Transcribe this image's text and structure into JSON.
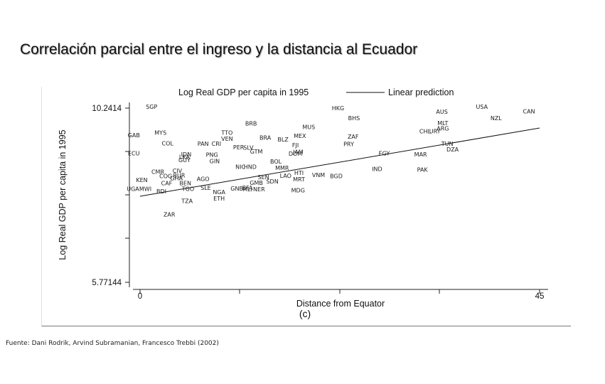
{
  "slide": {
    "title": "Correlación parcial entre el ingreso y la distancia al Ecuador",
    "source": "Fuente: Dani Rodrik, Arvind Subramanian, Francesco Trebbi (2002)"
  },
  "chart_data": {
    "type": "scatter",
    "title": "Log Real GDP per capita in 1995",
    "legend": "Linear prediction",
    "legend_position": "top",
    "xlabel": "Distance from Equator",
    "ylabel": "Log Real GDP per capita in 1995",
    "panel_label": "(c)",
    "xlim": [
      0,
      45
    ],
    "ylim": [
      5.77144,
      10.2414
    ],
    "x_ticks": [
      {
        "value": 0,
        "label": "0"
      },
      {
        "value": 45,
        "label": "45"
      }
    ],
    "y_ticks": [
      {
        "value": 10.2414,
        "label": "10.2414"
      },
      {
        "value": 5.77144,
        "label": "5.77144"
      }
    ],
    "grid": false,
    "fit_line": {
      "x": [
        0,
        45
      ],
      "y": [
        7.98,
        9.73
      ]
    },
    "points": [
      {
        "label": "SGP",
        "x": 1.3,
        "y": 10.28
      },
      {
        "label": "HKG",
        "x": 22.3,
        "y": 10.24
      },
      {
        "label": "USA",
        "x": 38.5,
        "y": 10.28
      },
      {
        "label": "AUS",
        "x": 34.0,
        "y": 10.15
      },
      {
        "label": "CAN",
        "x": 43.8,
        "y": 10.16
      },
      {
        "label": "BHS",
        "x": 24.1,
        "y": 9.99
      },
      {
        "label": "NZL",
        "x": 40.1,
        "y": 9.99
      },
      {
        "label": "BRB",
        "x": 12.5,
        "y": 9.85
      },
      {
        "label": "MUS",
        "x": 19.0,
        "y": 9.76
      },
      {
        "label": "MLT",
        "x": 34.1,
        "y": 9.86
      },
      {
        "label": "ARG",
        "x": 34.1,
        "y": 9.72
      },
      {
        "label": "CHL",
        "x": 32.1,
        "y": 9.65
      },
      {
        "label": "URY",
        "x": 33.2,
        "y": 9.65
      },
      {
        "label": "GAB",
        "x": -0.7,
        "y": 9.55
      },
      {
        "label": "MYS",
        "x": 2.3,
        "y": 9.61
      },
      {
        "label": "TTO",
        "x": 9.8,
        "y": 9.61
      },
      {
        "label": "VEN",
        "x": 9.8,
        "y": 9.46
      },
      {
        "label": "BRA",
        "x": 14.1,
        "y": 9.48
      },
      {
        "label": "MEX",
        "x": 18.0,
        "y": 9.53
      },
      {
        "label": "BLZ",
        "x": 16.1,
        "y": 9.44
      },
      {
        "label": "ZAF",
        "x": 24.0,
        "y": 9.51
      },
      {
        "label": "COL",
        "x": 3.1,
        "y": 9.34
      },
      {
        "label": "PAN",
        "x": 7.1,
        "y": 9.33
      },
      {
        "label": "CRI",
        "x": 8.6,
        "y": 9.33
      },
      {
        "label": "FJI",
        "x": 17.5,
        "y": 9.29
      },
      {
        "label": "PRY",
        "x": 23.5,
        "y": 9.32
      },
      {
        "label": "TUN",
        "x": 34.6,
        "y": 9.33
      },
      {
        "label": "PER",
        "x": 11.1,
        "y": 9.24
      },
      {
        "label": "SLV",
        "x": 12.2,
        "y": 9.23
      },
      {
        "label": "GTM",
        "x": 13.1,
        "y": 9.13
      },
      {
        "label": "JAM",
        "x": 17.8,
        "y": 9.12
      },
      {
        "label": "DOM",
        "x": 17.5,
        "y": 9.07
      },
      {
        "label": "DZA",
        "x": 35.2,
        "y": 9.18
      },
      {
        "label": "EGY",
        "x": 27.5,
        "y": 9.08
      },
      {
        "label": "MAR",
        "x": 31.6,
        "y": 9.06
      },
      {
        "label": "ECU",
        "x": -0.7,
        "y": 9.08
      },
      {
        "label": "IDN",
        "x": 5.2,
        "y": 9.06
      },
      {
        "label": "LKA",
        "x": 5.0,
        "y": 8.99
      },
      {
        "label": "GUY",
        "x": 5.0,
        "y": 8.91
      },
      {
        "label": "PNG",
        "x": 8.1,
        "y": 9.05
      },
      {
        "label": "GIN",
        "x": 8.4,
        "y": 8.88
      },
      {
        "label": "BOL",
        "x": 15.3,
        "y": 8.87
      },
      {
        "label": "HND",
        "x": 12.4,
        "y": 8.74
      },
      {
        "label": "NIC",
        "x": 11.3,
        "y": 8.74
      },
      {
        "label": "MMR",
        "x": 16.0,
        "y": 8.71
      },
      {
        "label": "IND",
        "x": 26.7,
        "y": 8.68
      },
      {
        "label": "PAK",
        "x": 31.8,
        "y": 8.66
      },
      {
        "label": "CMR",
        "x": 2.0,
        "y": 8.61
      },
      {
        "label": "CIV",
        "x": 4.2,
        "y": 8.64
      },
      {
        "label": "COG",
        "x": 2.9,
        "y": 8.5
      },
      {
        "label": "BUR",
        "x": 4.4,
        "y": 8.52
      },
      {
        "label": "GHA",
        "x": 4.1,
        "y": 8.44
      },
      {
        "label": "KEN",
        "x": 0.2,
        "y": 8.4
      },
      {
        "label": "AGO",
        "x": 7.1,
        "y": 8.43
      },
      {
        "label": "CAF",
        "x": 3.0,
        "y": 8.32
      },
      {
        "label": "BEN",
        "x": 5.1,
        "y": 8.32
      },
      {
        "label": "LAO",
        "x": 16.4,
        "y": 8.51
      },
      {
        "label": "HTI",
        "x": 17.9,
        "y": 8.58
      },
      {
        "label": "VNM",
        "x": 20.1,
        "y": 8.53
      },
      {
        "label": "BGD",
        "x": 22.1,
        "y": 8.5
      },
      {
        "label": "SEN",
        "x": 13.9,
        "y": 8.47
      },
      {
        "label": "SDN",
        "x": 14.9,
        "y": 8.36
      },
      {
        "label": "MRT",
        "x": 17.9,
        "y": 8.42
      },
      {
        "label": "GMB",
        "x": 13.1,
        "y": 8.33
      },
      {
        "label": "SLE",
        "x": 7.4,
        "y": 8.2
      },
      {
        "label": "TGO",
        "x": 5.4,
        "y": 8.17
      },
      {
        "label": "GNB",
        "x": 10.9,
        "y": 8.18
      },
      {
        "label": "BFA",
        "x": 12.1,
        "y": 8.2
      },
      {
        "label": "MLI",
        "x": 12.1,
        "y": 8.16
      },
      {
        "label": "NER",
        "x": 13.4,
        "y": 8.16
      },
      {
        "label": "MDG",
        "x": 17.8,
        "y": 8.13
      },
      {
        "label": "UGA",
        "x": -0.8,
        "y": 8.17
      },
      {
        "label": "MWI",
        "x": 0.6,
        "y": 8.17
      },
      {
        "label": "BDI",
        "x": 2.4,
        "y": 8.11
      },
      {
        "label": "NGA",
        "x": 8.9,
        "y": 8.09
      },
      {
        "label": "ETH",
        "x": 8.9,
        "y": 7.92
      },
      {
        "label": "TZA",
        "x": 5.3,
        "y": 7.86
      },
      {
        "label": "ZAR",
        "x": 3.3,
        "y": 7.51
      }
    ]
  }
}
